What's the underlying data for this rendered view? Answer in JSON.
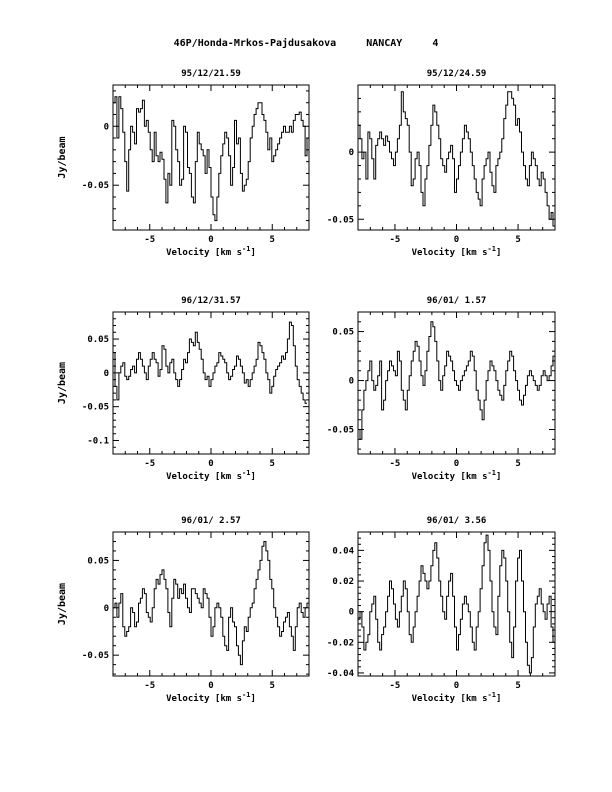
{
  "header": {
    "comet": "46P/Honda-Mrkos-Pajdusakova",
    "station": "NANCAY",
    "page_number": "4"
  },
  "chart_data": [
    {
      "type": "line",
      "title": "95/12/21.59",
      "xlabel": "Velocity [km s^-1]",
      "ylabel": "Jy/beam",
      "xlim": [
        -8,
        8
      ],
      "ylim": [
        -0.088,
        0.035
      ],
      "xticks": [
        -5,
        0,
        5
      ],
      "yticks": [
        0,
        -0.05
      ],
      "ytick_labels": [
        "0",
        "-0.05"
      ],
      "x_start": -8,
      "x_step": 0.16,
      "values": [
        0.02,
        0.025,
        -0.01,
        0.025,
        0.015,
        -0.005,
        -0.03,
        -0.055,
        -0.02,
        0.0,
        -0.005,
        -0.015,
        0.015,
        0.012,
        0.015,
        0.022,
        0.0,
        0.005,
        -0.005,
        -0.02,
        -0.03,
        -0.005,
        -0.025,
        -0.03,
        -0.022,
        -0.028,
        -0.045,
        -0.065,
        -0.04,
        -0.05,
        0.005,
        0.0,
        -0.02,
        -0.03,
        -0.05,
        -0.045,
        0.0,
        -0.005,
        -0.035,
        -0.04,
        -0.06,
        -0.065,
        -0.03,
        -0.005,
        -0.015,
        -0.02,
        -0.025,
        -0.04,
        -0.02,
        -0.035,
        -0.06,
        -0.075,
        -0.08,
        -0.06,
        -0.04,
        -0.025,
        -0.015,
        -0.005,
        -0.01,
        -0.025,
        -0.05,
        -0.035,
        0.005,
        -0.015,
        -0.01,
        -0.04,
        -0.055,
        -0.05,
        -0.045,
        -0.03,
        -0.01,
        0.0,
        0.01,
        0.015,
        0.02,
        0.02,
        0.01,
        0.005,
        -0.005,
        -0.02,
        -0.01,
        -0.03,
        -0.025,
        -0.02,
        -0.015,
        -0.01,
        -0.005,
        0.0,
        -0.005,
        -0.005,
        0.0,
        -0.005,
        0.005,
        0.01,
        0.01,
        0.012,
        0.005,
        0.0,
        -0.025,
        -0.01,
        0.0
      ]
    },
    {
      "type": "line",
      "title": "95/12/24.59",
      "xlabel": "Velocity [km s^-1]",
      "ylabel": "",
      "xlim": [
        -8,
        8
      ],
      "ylim": [
        -0.058,
        0.05
      ],
      "xticks": [
        -5,
        0,
        5
      ],
      "yticks": [
        0,
        -0.05
      ],
      "ytick_labels": [
        "0",
        "-0.05"
      ],
      "x_start": -8,
      "x_step": 0.16,
      "values": [
        0.02,
        0.01,
        -0.005,
        0.0,
        -0.02,
        0.015,
        0.01,
        -0.005,
        -0.02,
        0.005,
        0.01,
        0.015,
        0.01,
        0.005,
        0.012,
        0.008,
        0.0,
        -0.005,
        -0.01,
        0.0,
        0.01,
        0.02,
        0.045,
        0.03,
        0.025,
        0.02,
        0.0,
        -0.025,
        -0.02,
        -0.005,
        0.0,
        -0.01,
        -0.03,
        -0.04,
        -0.02,
        -0.01,
        0.005,
        0.02,
        0.035,
        0.03,
        0.02,
        0.01,
        -0.005,
        -0.01,
        -0.015,
        -0.005,
        0.0,
        0.005,
        -0.005,
        -0.03,
        -0.02,
        -0.01,
        0.0,
        0.01,
        0.02,
        0.015,
        0.01,
        0.0,
        -0.01,
        -0.02,
        -0.03,
        -0.035,
        -0.04,
        -0.02,
        -0.01,
        -0.005,
        0.0,
        -0.015,
        -0.025,
        -0.03,
        -0.01,
        -0.005,
        0.0,
        0.01,
        0.025,
        0.035,
        0.045,
        0.045,
        0.04,
        0.035,
        0.02,
        0.025,
        0.015,
        0.0,
        -0.01,
        -0.02,
        -0.025,
        -0.01,
        0.0,
        -0.005,
        -0.01,
        -0.02,
        -0.025,
        -0.015,
        -0.02,
        -0.03,
        -0.04,
        -0.05,
        -0.045,
        -0.055
      ]
    },
    {
      "type": "line",
      "title": "96/12/31.57",
      "xlabel": "Velocity [km s^-1]",
      "ylabel": "Jy/beam",
      "xlim": [
        -8,
        8
      ],
      "ylim": [
        -0.12,
        0.09
      ],
      "xticks": [
        -5,
        0,
        5
      ],
      "yticks": [
        0.05,
        0,
        -0.05,
        -0.1
      ],
      "ytick_labels": [
        "0.05",
        "0",
        "-0.05",
        "-0.1"
      ],
      "x_start": -8,
      "x_step": 0.16,
      "values": [
        0.03,
        -0.02,
        -0.04,
        0.0,
        0.01,
        0.015,
        -0.005,
        -0.01,
        -0.005,
        0.005,
        0.01,
        0.0,
        0.02,
        0.03,
        0.02,
        0.01,
        0.0,
        -0.01,
        0.01,
        0.02,
        0.03,
        0.02,
        0.015,
        -0.005,
        0.005,
        0.04,
        0.035,
        0.01,
        0.0,
        0.015,
        0.02,
        0.0,
        -0.01,
        -0.02,
        -0.01,
        0.005,
        0.02,
        0.015,
        0.03,
        0.05,
        0.045,
        0.04,
        0.06,
        0.045,
        0.035,
        0.02,
        0.0,
        -0.01,
        -0.005,
        -0.02,
        -0.01,
        0.0,
        0.01,
        0.015,
        0.03,
        0.025,
        0.02,
        0.015,
        0.0,
        -0.01,
        -0.005,
        0.005,
        0.01,
        0.025,
        0.02,
        0.01,
        0.0,
        -0.015,
        -0.01,
        -0.02,
        -0.01,
        0.0,
        0.01,
        0.02,
        0.045,
        0.04,
        0.03,
        0.02,
        0.0,
        -0.01,
        -0.03,
        -0.02,
        -0.005,
        0.005,
        0.01,
        0.015,
        0.025,
        0.02,
        0.03,
        0.05,
        0.075,
        0.07,
        0.04,
        0.01,
        -0.01,
        -0.02,
        -0.03,
        -0.04,
        -0.045
      ]
    },
    {
      "type": "line",
      "title": "96/01/ 1.57",
      "xlabel": "Velocity [km s^-1]",
      "ylabel": "",
      "xlim": [
        -8,
        8
      ],
      "ylim": [
        -0.075,
        0.07
      ],
      "xticks": [
        -5,
        0,
        5
      ],
      "yticks": [
        0.05,
        0,
        -0.05
      ],
      "ytick_labels": [
        "0.05",
        "0",
        "-0.05"
      ],
      "x_start": -8,
      "x_step": 0.16,
      "values": [
        -0.05,
        -0.06,
        -0.03,
        -0.01,
        0.0,
        0.01,
        0.02,
        0.0,
        -0.01,
        -0.005,
        0.005,
        0.02,
        -0.03,
        -0.02,
        0.0,
        0.01,
        0.02,
        0.015,
        0.01,
        0.005,
        0.03,
        0.02,
        -0.01,
        -0.02,
        -0.03,
        -0.01,
        0.005,
        0.02,
        0.03,
        0.04,
        0.035,
        0.02,
        0.005,
        -0.005,
        0.01,
        0.03,
        0.045,
        0.06,
        0.055,
        0.04,
        0.02,
        0.0,
        -0.01,
        0.005,
        0.015,
        0.03,
        0.025,
        0.02,
        0.01,
        0.0,
        -0.005,
        -0.01,
        0.0,
        0.005,
        0.01,
        0.015,
        0.02,
        0.03,
        0.025,
        0.01,
        -0.01,
        -0.02,
        -0.03,
        -0.04,
        -0.02,
        0.0,
        0.01,
        0.02,
        0.015,
        0.01,
        0.0,
        -0.01,
        -0.015,
        -0.02,
        -0.005,
        0.01,
        0.02,
        0.03,
        0.025,
        0.01,
        0.0,
        -0.01,
        -0.02,
        -0.025,
        -0.015,
        -0.005,
        0.005,
        0.01,
        0.005,
        0.0,
        -0.005,
        -0.01,
        -0.005,
        0.005,
        0.01,
        0.005,
        0.0,
        0.005,
        0.015,
        0.025,
        0.03
      ]
    },
    {
      "type": "line",
      "title": "96/01/ 2.57",
      "xlabel": "Velocity [km s^-1]",
      "ylabel": "Jy/beam",
      "xlim": [
        -8,
        8
      ],
      "ylim": [
        -0.072,
        0.08
      ],
      "xticks": [
        -5,
        0,
        5
      ],
      "yticks": [
        0.05,
        0,
        -0.05
      ],
      "ytick_labels": [
        "0.05",
        "0",
        "-0.05"
      ],
      "x_start": -8,
      "x_step": 0.16,
      "values": [
        0.0,
        0.005,
        -0.01,
        0.005,
        0.015,
        -0.02,
        -0.03,
        -0.025,
        -0.02,
        0.0,
        -0.005,
        -0.02,
        -0.015,
        0.005,
        0.01,
        0.02,
        0.015,
        -0.005,
        -0.01,
        -0.015,
        0.0,
        0.02,
        0.03,
        0.025,
        0.035,
        0.04,
        0.03,
        0.02,
        -0.005,
        -0.02,
        0.01,
        0.03,
        0.025,
        0.01,
        0.02,
        0.015,
        0.025,
        0.01,
        0.0,
        -0.005,
        0.02,
        0.02,
        0.015,
        0.01,
        0.005,
        0.0,
        0.02,
        0.015,
        0.01,
        -0.01,
        -0.03,
        -0.02,
        0.0,
        0.005,
        0.0,
        -0.01,
        -0.03,
        -0.04,
        -0.045,
        -0.01,
        0.0,
        -0.015,
        -0.02,
        -0.04,
        -0.05,
        -0.06,
        -0.035,
        -0.02,
        -0.025,
        -0.01,
        0.0,
        0.005,
        0.02,
        0.03,
        0.04,
        0.05,
        0.065,
        0.07,
        0.06,
        0.05,
        0.03,
        0.02,
        0.0,
        -0.01,
        -0.02,
        -0.03,
        -0.025,
        -0.015,
        -0.01,
        -0.005,
        -0.02,
        -0.03,
        -0.045,
        -0.02,
        0.0,
        0.005,
        -0.005,
        -0.01,
        0.0,
        0.005,
        0.01
      ]
    },
    {
      "type": "line",
      "title": "96/01/ 3.56",
      "xlabel": "Velocity [km s^-1]",
      "ylabel": "",
      "xlim": [
        -8,
        8
      ],
      "ylim": [
        -0.042,
        0.052
      ],
      "xticks": [
        -5,
        0,
        5
      ],
      "yticks": [
        0.04,
        0.02,
        0,
        -0.02,
        -0.04
      ],
      "ytick_labels": [
        "0.04",
        "0.02",
        "0",
        "-0.02",
        "-0.04"
      ],
      "x_start": -8,
      "x_step": 0.16,
      "values": [
        -0.005,
        0.0,
        -0.01,
        -0.025,
        -0.02,
        -0.015,
        0.0,
        0.005,
        0.01,
        -0.005,
        -0.02,
        -0.025,
        -0.015,
        -0.01,
        0.0,
        0.01,
        0.02,
        0.015,
        0.005,
        -0.005,
        -0.01,
        0.0,
        0.01,
        0.02,
        0.015,
        0.0,
        -0.015,
        -0.02,
        -0.01,
        0.0,
        0.01,
        0.02,
        0.03,
        0.025,
        0.02,
        0.015,
        0.02,
        0.03,
        0.04,
        0.045,
        0.035,
        0.02,
        0.01,
        0.0,
        -0.005,
        0.01,
        0.02,
        0.025,
        0.01,
        -0.01,
        -0.025,
        -0.015,
        -0.005,
        0.005,
        0.01,
        0.005,
        0.0,
        -0.01,
        -0.02,
        -0.025,
        -0.01,
        0.0,
        0.015,
        0.03,
        0.045,
        0.05,
        0.04,
        0.02,
        0.0,
        -0.01,
        -0.015,
        0.01,
        0.03,
        0.04,
        0.035,
        0.02,
        0.0,
        -0.02,
        -0.03,
        -0.01,
        0.02,
        0.035,
        0.04,
        0.02,
        0.0,
        -0.02,
        -0.035,
        -0.04,
        -0.03,
        -0.01,
        0.005,
        0.01,
        0.015,
        0.005,
        0.0,
        -0.005,
        0.005,
        0.01,
        -0.01,
        -0.02,
        -0.015
      ]
    }
  ]
}
